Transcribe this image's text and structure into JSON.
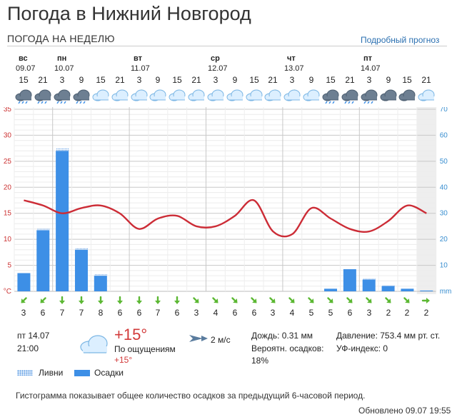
{
  "page": {
    "title": "Погода в Нижний Новгород",
    "subtitle": "ПОГОДА НА НЕДЕЛЮ",
    "detail_link": "Подробный прогноз"
  },
  "days": [
    {
      "name": "вс",
      "date": "09.07"
    },
    {
      "name": "пн",
      "date": "10.07"
    },
    {
      "name": "вт",
      "date": "11.07"
    },
    {
      "name": "ср",
      "date": "12.07"
    },
    {
      "name": "чт",
      "date": "13.07"
    },
    {
      "name": "пт",
      "date": "14.07"
    }
  ],
  "hours": [
    "15",
    "21",
    "3",
    "9",
    "15",
    "21",
    "3",
    "9",
    "15",
    "21",
    "3",
    "9",
    "15",
    "21",
    "3",
    "9",
    "15",
    "21",
    "3",
    "9",
    "15",
    "21"
  ],
  "icons": [
    "rain-icon",
    "rain-icon",
    "rain-icon",
    "rain-icon",
    "cloudy-icon",
    "cloudy-icon",
    "partly-cloudy-night-icon",
    "cloudy-icon",
    "cloudy-icon",
    "cloudy-icon",
    "cloudy-icon",
    "cloudy-icon",
    "cloudy-icon",
    "partly-cloudy-night-icon",
    "partly-cloudy-night-icon",
    "cloudy-icon",
    "rain-icon",
    "rain-icon",
    "rain-icon",
    "overcast-icon",
    "overcast-icon",
    "cloudy-icon"
  ],
  "wind_speeds": [
    "3",
    "6",
    "7",
    "7",
    "8",
    "6",
    "6",
    "7",
    "6",
    "3",
    "4",
    "6",
    "6",
    "3",
    "4",
    "5",
    "5",
    "6",
    "3",
    "2",
    "2",
    "2"
  ],
  "wind_directions": [
    "down-left-arrow-icon",
    "down-left-arrow-icon",
    "down-arrow-icon",
    "down-arrow-icon",
    "down-arrow-icon",
    "down-arrow-icon",
    "down-arrow-icon",
    "down-arrow-icon",
    "down-arrow-icon",
    "down-right-arrow-icon",
    "down-right-arrow-icon",
    "down-right-arrow-icon",
    "down-right-arrow-icon",
    "down-right-arrow-icon",
    "down-right-arrow-icon",
    "down-right-arrow-icon",
    "down-right-arrow-icon",
    "down-right-arrow-icon",
    "down-right-arrow-icon",
    "down-right-arrow-icon",
    "down-right-arrow-icon",
    "right-arrow-icon"
  ],
  "colors": {
    "temp_line": "#cc2c36",
    "precip_bar": "#3d8fe6",
    "shower_dots": "#4a90e2",
    "arrow": "#5cb833",
    "left_axis": "#cc3333",
    "right_axis": "#3a8fd0",
    "grid": "#dddddd",
    "highlight": "#eeeeee"
  },
  "chart_data": {
    "type": "bar",
    "categories": [
      "15",
      "21",
      "3",
      "9",
      "15",
      "21",
      "3",
      "9",
      "15",
      "21",
      "3",
      "9",
      "15",
      "21",
      "3",
      "9",
      "15",
      "21",
      "3",
      "9",
      "15",
      "21"
    ],
    "series": [
      {
        "name": "Осадки",
        "type": "bar",
        "axis": "right",
        "values": [
          7,
          23.5,
          54,
          16,
          6,
          0,
          0,
          0,
          0,
          0,
          0,
          0,
          0,
          0,
          0,
          0,
          1,
          8.5,
          4.5,
          2,
          1,
          0.3
        ]
      },
      {
        "name": "Ливни",
        "type": "bar",
        "axis": "right",
        "values": [
          0,
          0.8,
          1.2,
          0.8,
          0.8,
          0,
          0,
          0,
          0,
          0,
          0,
          0,
          0,
          0,
          0,
          0,
          0,
          0,
          0.6,
          0.5,
          0,
          0
        ]
      },
      {
        "type": "line",
        "axis": "left",
        "values": [
          17.5,
          16.5,
          15,
          16,
          16.5,
          15,
          12,
          14,
          14.5,
          12.5,
          12.5,
          14.5,
          17.5,
          11.5,
          11,
          16,
          14,
          12,
          11.5,
          13.5,
          16.5,
          15
        ]
      }
    ],
    "left_axis": {
      "ylim": [
        0,
        35
      ],
      "ticks": [
        "°C",
        "5",
        "10",
        "15",
        "20",
        "25",
        "30",
        "35"
      ]
    },
    "right_axis": {
      "ylim": [
        0,
        70
      ],
      "ticks": [
        "mm",
        "10",
        "20",
        "30",
        "40",
        "50",
        "60",
        "70"
      ]
    }
  },
  "current": {
    "day": "пт 14.07",
    "time": "21:00",
    "temp": "+15°",
    "feels_label": "По ощущениям",
    "feels_value": "+15°",
    "wind": "2 м/с",
    "rain": "Дождь: 0.31 мм",
    "prob_label": "Вероятн. осадков:",
    "prob_value": "18%",
    "pressure": "Давление: 753.4 мм рт. ст.",
    "uv": "УФ-индекс: 0"
  },
  "legend": {
    "showers": "Ливни",
    "precip": "Осадки"
  },
  "footer": {
    "note": "Гистограмма показывает общее количество осадков за предыдущий 6-часовой период.",
    "updated": "Обновлено 09.07 19:55"
  }
}
